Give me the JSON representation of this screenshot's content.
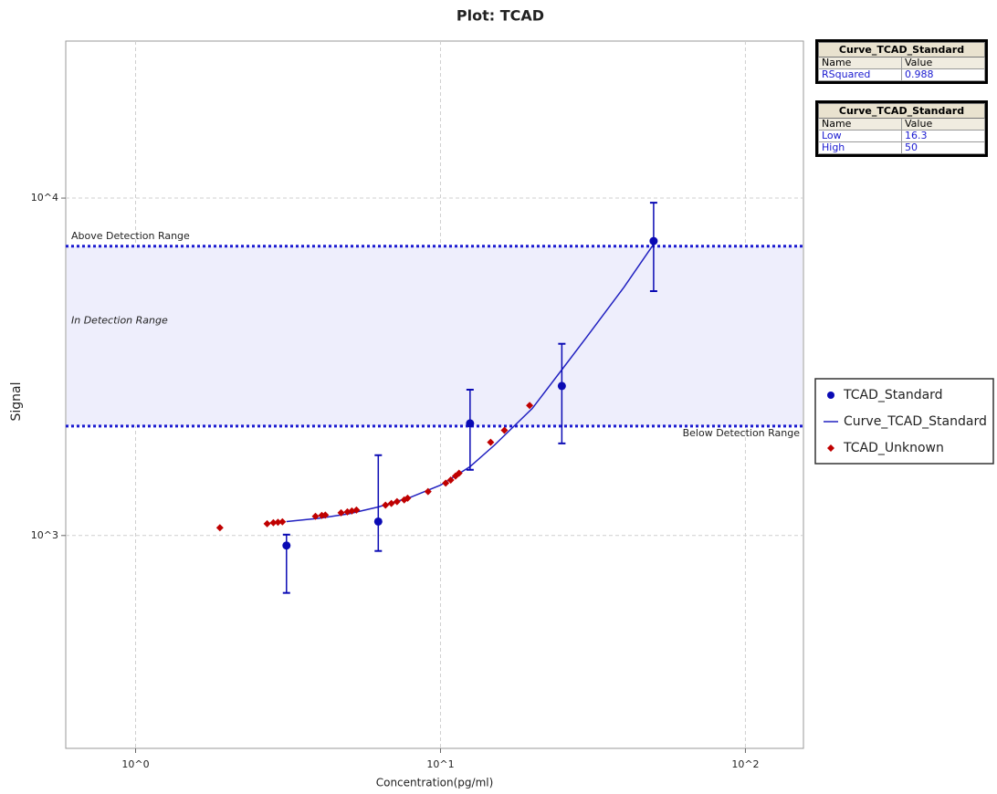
{
  "chart_data": {
    "type": "scatter",
    "title": "Plot: TCAD",
    "x_label": "Concentration(pg/ml)",
    "y_label": "Signal",
    "x_scale": "log",
    "y_scale": "log",
    "grid": true,
    "xlim": [
      0.59,
      155
    ],
    "ylim": [
      234,
      29200
    ],
    "xticks": [
      {
        "value": 1,
        "label": "10^0"
      },
      {
        "value": 10,
        "label": "10^1"
      },
      {
        "value": 100,
        "label": "10^2"
      }
    ],
    "yticks": [
      {
        "value": 1000,
        "label": "10^3"
      },
      {
        "value": 10000,
        "label": "10^4"
      }
    ],
    "detection_range": {
      "low": 2110,
      "high": 7200,
      "color": "#1a1ad0",
      "fill": "#eeeefc",
      "above_label": "Above Detection Range",
      "in_label": "In Detection Range",
      "below_label": "Below Detection Range"
    },
    "legend_position": "right",
    "series": [
      {
        "name": "TCAD_Standard",
        "color": "#0a0ab4",
        "marker": "circle",
        "x": [
          3.125,
          6.25,
          12.5,
          25,
          50
        ],
        "values": [
          934,
          1100,
          2150,
          2775,
          7460
        ],
        "upper": [
          1006,
          1730,
          2705,
          3700,
          9690
        ],
        "lower": [
          676,
          900,
          1566,
          1875,
          5300
        ]
      },
      {
        "name": "Curve_TCAD_Standard",
        "color": "#2020c0",
        "marker": "line",
        "x": [
          3.125,
          4,
          5,
          6.25,
          8,
          10,
          12.5,
          15,
          20,
          25,
          30,
          40,
          50
        ],
        "values": [
          1100,
          1125,
          1160,
          1215,
          1300,
          1410,
          1600,
          1850,
          2380,
          3100,
          3850,
          5450,
          7300
        ]
      },
      {
        "name": "TCAD_Unknown",
        "color": "#c00000",
        "marker": "diamond",
        "x": [
          1.89,
          2.7,
          2.83,
          2.93,
          3.03,
          3.89,
          4.08,
          4.19,
          4.72,
          4.95,
          5.12,
          5.3,
          6.6,
          6.9,
          7.2,
          7.6,
          7.8,
          9.1,
          10.4,
          10.8,
          11.2,
          11.5,
          14.6,
          16.2,
          19.6
        ],
        "values": [
          1055,
          1084,
          1091,
          1095,
          1098,
          1140,
          1147,
          1150,
          1168,
          1175,
          1182,
          1190,
          1230,
          1245,
          1260,
          1275,
          1290,
          1350,
          1430,
          1460,
          1500,
          1530,
          1890,
          2050,
          2430
        ]
      }
    ],
    "stats_tables": [
      {
        "title": "Curve_TCAD_Standard",
        "columns": [
          "Name",
          "Value"
        ],
        "rows": [
          [
            "RSquared",
            0.988
          ]
        ]
      },
      {
        "title": "Curve_TCAD_Standard",
        "columns": [
          "Name",
          "Value"
        ],
        "rows": [
          [
            "Low",
            16.3
          ],
          [
            "High",
            50
          ]
        ]
      }
    ]
  }
}
